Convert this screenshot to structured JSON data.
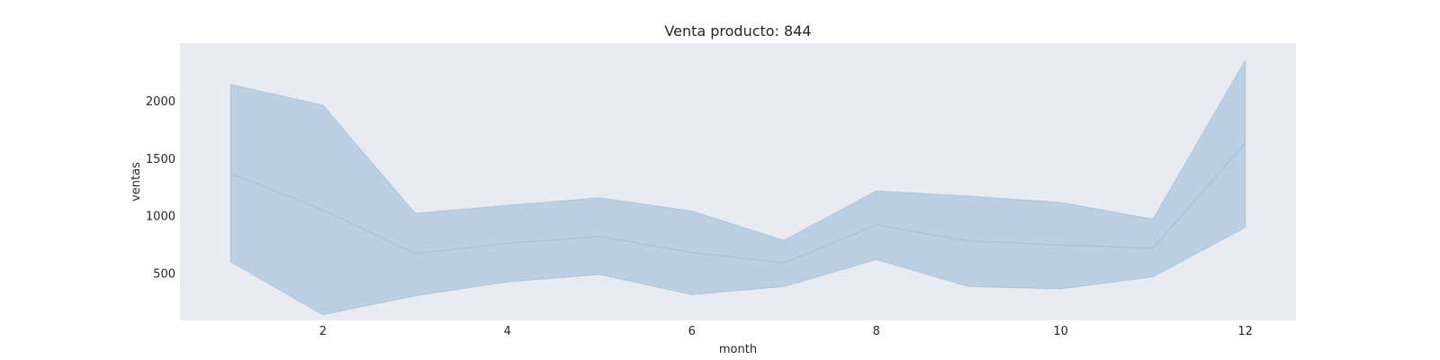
{
  "chart_data": {
    "type": "line",
    "title": "Venta producto: 844",
    "xlabel": "month",
    "ylabel": "ventas",
    "xlim": [
      0.45,
      12.55
    ],
    "ylim": [
      90,
      2500
    ],
    "xticks": [
      2,
      4,
      6,
      8,
      10,
      12
    ],
    "yticks": [
      500,
      1000,
      1500,
      2000
    ],
    "grid": false,
    "colors": {
      "line": "#a9c4dd",
      "band": "#bccfe3",
      "background": "#eaeaf2"
    },
    "series": [
      {
        "x": [
          1,
          2,
          3,
          4,
          5,
          6,
          7,
          8,
          9,
          10,
          11,
          12
        ],
        "values": [
          1370,
          1050,
          670,
          760,
          820,
          680,
          590,
          920,
          780,
          745,
          720,
          1630
        ],
        "lower": [
          600,
          140,
          305,
          425,
          490,
          315,
          385,
          620,
          385,
          365,
          470,
          900
        ],
        "upper": [
          2140,
          1960,
          1020,
          1090,
          1155,
          1040,
          785,
          1215,
          1170,
          1115,
          970,
          2350
        ]
      }
    ]
  }
}
